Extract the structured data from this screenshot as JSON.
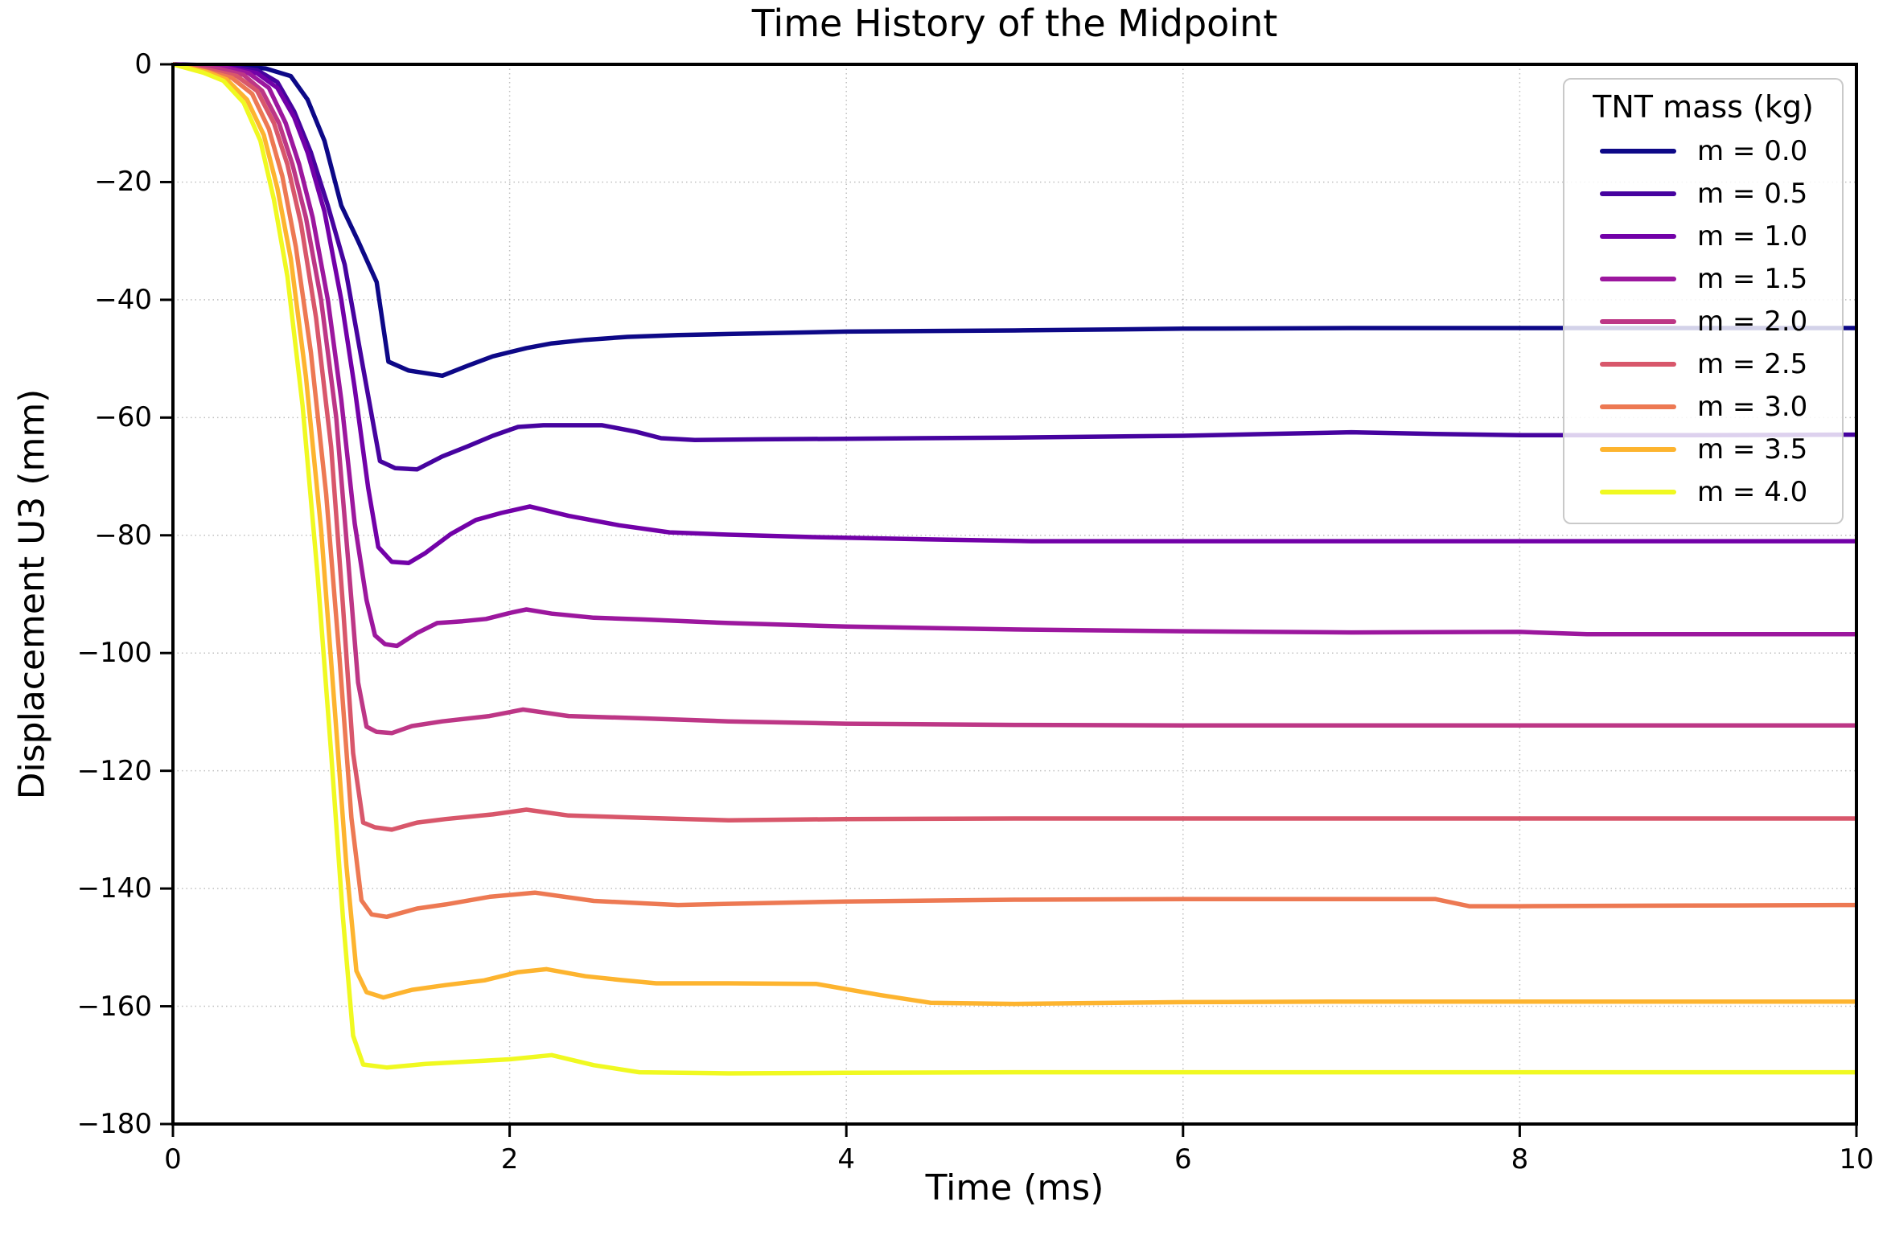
{
  "chart_data": {
    "type": "line",
    "title": "Time History of the Midpoint",
    "xlabel": "Time (ms)",
    "ylabel": "Displacement U3 (mm)",
    "xlim": [
      0,
      10
    ],
    "ylim": [
      -180,
      0
    ],
    "xticks": [
      0,
      2,
      4,
      6,
      8,
      10
    ],
    "xtick_labels": [
      "0",
      "2",
      "4",
      "6",
      "8",
      "10"
    ],
    "yticks": [
      0,
      -20,
      -40,
      -60,
      -80,
      -100,
      -120,
      -140,
      -160,
      -180
    ],
    "ytick_labels": [
      "0",
      "−20",
      "−40",
      "−60",
      "−80",
      "−100",
      "−120",
      "−140",
      "−160",
      "−180"
    ],
    "grid": "dotted",
    "legend_title": "TNT mass (kg)",
    "legend_position": "upper right",
    "series": [
      {
        "name": "m = 0.0",
        "tnt_mass_kg": 0.0,
        "color": "#0d0887",
        "points": [
          [
            0,
            0
          ],
          [
            0.3,
            -0.2
          ],
          [
            0.55,
            -0.7
          ],
          [
            0.7,
            -2
          ],
          [
            0.8,
            -6
          ],
          [
            0.9,
            -13
          ],
          [
            1.0,
            -24
          ],
          [
            1.1,
            -30
          ],
          [
            1.21,
            -37
          ],
          [
            1.28,
            -50.5
          ],
          [
            1.4,
            -52
          ],
          [
            1.6,
            -52.9
          ],
          [
            1.75,
            -51.2
          ],
          [
            1.9,
            -49.6
          ],
          [
            2.1,
            -48.2
          ],
          [
            2.25,
            -47.4
          ],
          [
            2.45,
            -46.8
          ],
          [
            2.7,
            -46.3
          ],
          [
            3.0,
            -46.0
          ],
          [
            3.3,
            -45.8
          ],
          [
            4.0,
            -45.4
          ],
          [
            5.0,
            -45.2
          ],
          [
            6.0,
            -44.9
          ],
          [
            7.0,
            -44.8
          ],
          [
            8.0,
            -44.8
          ],
          [
            9.0,
            -44.8
          ],
          [
            10,
            -44.8
          ]
        ]
      },
      {
        "name": "m = 0.5",
        "tnt_mass_kg": 0.5,
        "color": "#46039f",
        "points": [
          [
            0,
            0
          ],
          [
            0.3,
            -0.3
          ],
          [
            0.5,
            -1
          ],
          [
            0.62,
            -3
          ],
          [
            0.72,
            -8
          ],
          [
            0.82,
            -15
          ],
          [
            0.92,
            -24
          ],
          [
            1.02,
            -34
          ],
          [
            1.12,
            -50
          ],
          [
            1.23,
            -67.4
          ],
          [
            1.32,
            -68.6
          ],
          [
            1.45,
            -68.8
          ],
          [
            1.6,
            -66.6
          ],
          [
            1.75,
            -64.9
          ],
          [
            1.9,
            -63.1
          ],
          [
            2.05,
            -61.6
          ],
          [
            2.2,
            -61.3
          ],
          [
            2.55,
            -61.3
          ],
          [
            2.75,
            -62.4
          ],
          [
            2.9,
            -63.5
          ],
          [
            3.1,
            -63.8
          ],
          [
            3.5,
            -63.7
          ],
          [
            4.0,
            -63.6
          ],
          [
            5.0,
            -63.4
          ],
          [
            6.0,
            -63.1
          ],
          [
            6.5,
            -62.8
          ],
          [
            7.0,
            -62.5
          ],
          [
            7.5,
            -62.8
          ],
          [
            8.0,
            -63.0
          ],
          [
            9.0,
            -63.0
          ],
          [
            10,
            -62.9
          ]
        ]
      },
      {
        "name": "m = 1.0",
        "tnt_mass_kg": 1.0,
        "color": "#7201a8",
        "points": [
          [
            0,
            0
          ],
          [
            0.3,
            -0.4
          ],
          [
            0.5,
            -1.5
          ],
          [
            0.62,
            -4
          ],
          [
            0.72,
            -9
          ],
          [
            0.8,
            -15
          ],
          [
            0.9,
            -25
          ],
          [
            1.0,
            -40
          ],
          [
            1.08,
            -55
          ],
          [
            1.16,
            -72
          ],
          [
            1.22,
            -82
          ],
          [
            1.3,
            -84.5
          ],
          [
            1.4,
            -84.7
          ],
          [
            1.5,
            -83
          ],
          [
            1.65,
            -79.8
          ],
          [
            1.8,
            -77.4
          ],
          [
            1.95,
            -76.2
          ],
          [
            2.12,
            -75.1
          ],
          [
            2.35,
            -76.7
          ],
          [
            2.65,
            -78.3
          ],
          [
            2.95,
            -79.5
          ],
          [
            3.3,
            -79.9
          ],
          [
            3.8,
            -80.3
          ],
          [
            4.5,
            -80.7
          ],
          [
            5.1,
            -81.0
          ],
          [
            6.0,
            -81.0
          ],
          [
            7.0,
            -81.0
          ],
          [
            8.0,
            -81.0
          ],
          [
            9.0,
            -81.0
          ],
          [
            10,
            -81.0
          ]
        ]
      },
      {
        "name": "m = 1.5",
        "tnt_mass_kg": 1.5,
        "color": "#9c179e",
        "points": [
          [
            0,
            0
          ],
          [
            0.3,
            -0.5
          ],
          [
            0.45,
            -1.5
          ],
          [
            0.57,
            -4
          ],
          [
            0.67,
            -10
          ],
          [
            0.75,
            -17
          ],
          [
            0.83,
            -26
          ],
          [
            0.92,
            -40
          ],
          [
            1.0,
            -57
          ],
          [
            1.08,
            -78
          ],
          [
            1.15,
            -91
          ],
          [
            1.2,
            -97
          ],
          [
            1.26,
            -98.5
          ],
          [
            1.33,
            -98.8
          ],
          [
            1.45,
            -96.6
          ],
          [
            1.57,
            -94.9
          ],
          [
            1.72,
            -94.6
          ],
          [
            1.86,
            -94.2
          ],
          [
            2.0,
            -93.2
          ],
          [
            2.1,
            -92.6
          ],
          [
            2.25,
            -93.3
          ],
          [
            2.5,
            -94.0
          ],
          [
            2.8,
            -94.3
          ],
          [
            3.3,
            -94.9
          ],
          [
            4.0,
            -95.5
          ],
          [
            5.0,
            -96.0
          ],
          [
            6.0,
            -96.3
          ],
          [
            7.0,
            -96.5
          ],
          [
            8.0,
            -96.4
          ],
          [
            8.4,
            -96.8
          ],
          [
            9.0,
            -96.8
          ],
          [
            10,
            -96.8
          ]
        ]
      },
      {
        "name": "m = 2.0",
        "tnt_mass_kg": 2.0,
        "color": "#bd3786",
        "points": [
          [
            0,
            0
          ],
          [
            0.28,
            -0.8
          ],
          [
            0.42,
            -1.8
          ],
          [
            0.53,
            -4.5
          ],
          [
            0.63,
            -10
          ],
          [
            0.71,
            -17
          ],
          [
            0.79,
            -26
          ],
          [
            0.88,
            -40
          ],
          [
            0.97,
            -60
          ],
          [
            1.04,
            -84
          ],
          [
            1.1,
            -105
          ],
          [
            1.15,
            -112.5
          ],
          [
            1.21,
            -113.4
          ],
          [
            1.3,
            -113.6
          ],
          [
            1.42,
            -112.4
          ],
          [
            1.6,
            -111.6
          ],
          [
            1.88,
            -110.7
          ],
          [
            2.08,
            -109.6
          ],
          [
            2.35,
            -110.7
          ],
          [
            2.8,
            -111.1
          ],
          [
            3.3,
            -111.6
          ],
          [
            4.0,
            -112.0
          ],
          [
            5.0,
            -112.2
          ],
          [
            6.0,
            -112.3
          ],
          [
            7.0,
            -112.3
          ],
          [
            8.0,
            -112.3
          ],
          [
            9.0,
            -112.3
          ],
          [
            10,
            -112.3
          ]
        ]
      },
      {
        "name": "m = 2.5",
        "tnt_mass_kg": 2.5,
        "color": "#d8576b",
        "points": [
          [
            0,
            0
          ],
          [
            0.22,
            -1
          ],
          [
            0.38,
            -2
          ],
          [
            0.5,
            -4.5
          ],
          [
            0.6,
            -10
          ],
          [
            0.68,
            -17
          ],
          [
            0.76,
            -27
          ],
          [
            0.85,
            -43
          ],
          [
            0.94,
            -65
          ],
          [
            1.01,
            -92
          ],
          [
            1.07,
            -117
          ],
          [
            1.13,
            -128.8
          ],
          [
            1.2,
            -129.6
          ],
          [
            1.3,
            -130.0
          ],
          [
            1.45,
            -128.8
          ],
          [
            1.62,
            -128.2
          ],
          [
            1.9,
            -127.4
          ],
          [
            2.1,
            -126.6
          ],
          [
            2.35,
            -127.6
          ],
          [
            2.8,
            -128.0
          ],
          [
            3.3,
            -128.4
          ],
          [
            4.0,
            -128.2
          ],
          [
            5.0,
            -128.1
          ],
          [
            6.0,
            -128.1
          ],
          [
            7.0,
            -128.1
          ],
          [
            8.0,
            -128.1
          ],
          [
            9.0,
            -128.1
          ],
          [
            10,
            -128.1
          ]
        ]
      },
      {
        "name": "m = 3.0",
        "tnt_mass_kg": 3.0,
        "color": "#ed7953",
        "points": [
          [
            0,
            0
          ],
          [
            0.2,
            -1.2
          ],
          [
            0.35,
            -2.3
          ],
          [
            0.47,
            -5
          ],
          [
            0.57,
            -11
          ],
          [
            0.65,
            -19
          ],
          [
            0.73,
            -31
          ],
          [
            0.82,
            -49
          ],
          [
            0.91,
            -73
          ],
          [
            0.99,
            -101
          ],
          [
            1.06,
            -128
          ],
          [
            1.12,
            -142
          ],
          [
            1.18,
            -144.4
          ],
          [
            1.27,
            -144.8
          ],
          [
            1.45,
            -143.4
          ],
          [
            1.62,
            -142.7
          ],
          [
            1.88,
            -141.4
          ],
          [
            2.15,
            -140.7
          ],
          [
            2.5,
            -142.1
          ],
          [
            3.0,
            -142.8
          ],
          [
            3.3,
            -142.6
          ],
          [
            4.0,
            -142.2
          ],
          [
            5.0,
            -141.9
          ],
          [
            6.0,
            -141.8
          ],
          [
            7.0,
            -141.8
          ],
          [
            7.5,
            -141.8
          ],
          [
            7.7,
            -143.0
          ],
          [
            8.0,
            -143.0
          ],
          [
            9.0,
            -142.9
          ],
          [
            10,
            -142.8
          ]
        ]
      },
      {
        "name": "m = 3.5",
        "tnt_mass_kg": 3.5,
        "color": "#fdb42f",
        "points": [
          [
            0,
            0
          ],
          [
            0.2,
            -1.3
          ],
          [
            0.32,
            -2.6
          ],
          [
            0.44,
            -6
          ],
          [
            0.54,
            -12
          ],
          [
            0.62,
            -21
          ],
          [
            0.7,
            -33
          ],
          [
            0.79,
            -53
          ],
          [
            0.88,
            -79
          ],
          [
            0.96,
            -109
          ],
          [
            1.03,
            -136
          ],
          [
            1.09,
            -154
          ],
          [
            1.15,
            -157.6
          ],
          [
            1.25,
            -158.5
          ],
          [
            1.42,
            -157.2
          ],
          [
            1.62,
            -156.4
          ],
          [
            1.85,
            -155.6
          ],
          [
            2.05,
            -154.2
          ],
          [
            2.22,
            -153.7
          ],
          [
            2.45,
            -154.9
          ],
          [
            2.65,
            -155.5
          ],
          [
            2.87,
            -156.1
          ],
          [
            3.3,
            -156.1
          ],
          [
            3.82,
            -156.2
          ],
          [
            4.2,
            -158.1
          ],
          [
            4.5,
            -159.4
          ],
          [
            5.0,
            -159.6
          ],
          [
            6.0,
            -159.3
          ],
          [
            7.0,
            -159.2
          ],
          [
            8.0,
            -159.2
          ],
          [
            9.0,
            -159.2
          ],
          [
            10,
            -159.2
          ]
        ]
      },
      {
        "name": "m = 4.0",
        "tnt_mass_kg": 4.0,
        "color": "#f0f921",
        "points": [
          [
            0,
            0
          ],
          [
            0.18,
            -1.4
          ],
          [
            0.3,
            -2.8
          ],
          [
            0.42,
            -6.5
          ],
          [
            0.52,
            -13
          ],
          [
            0.6,
            -23
          ],
          [
            0.68,
            -36
          ],
          [
            0.77,
            -58
          ],
          [
            0.86,
            -87
          ],
          [
            0.94,
            -117
          ],
          [
            1.01,
            -145
          ],
          [
            1.07,
            -165
          ],
          [
            1.13,
            -169.9
          ],
          [
            1.27,
            -170.4
          ],
          [
            1.5,
            -169.8
          ],
          [
            1.75,
            -169.4
          ],
          [
            2.0,
            -169.0
          ],
          [
            2.25,
            -168.3
          ],
          [
            2.5,
            -170.0
          ],
          [
            2.77,
            -171.2
          ],
          [
            3.3,
            -171.4
          ],
          [
            4.0,
            -171.3
          ],
          [
            5.0,
            -171.2
          ],
          [
            6.0,
            -171.2
          ],
          [
            7.0,
            -171.2
          ],
          [
            8.0,
            -171.2
          ],
          [
            9.0,
            -171.2
          ],
          [
            10,
            -171.2
          ]
        ]
      }
    ]
  },
  "style_colors": {
    "spine": "#000000",
    "grid": "#b0b0b0",
    "legend_border": "#c9c9c9",
    "background": "#ffffff"
  }
}
